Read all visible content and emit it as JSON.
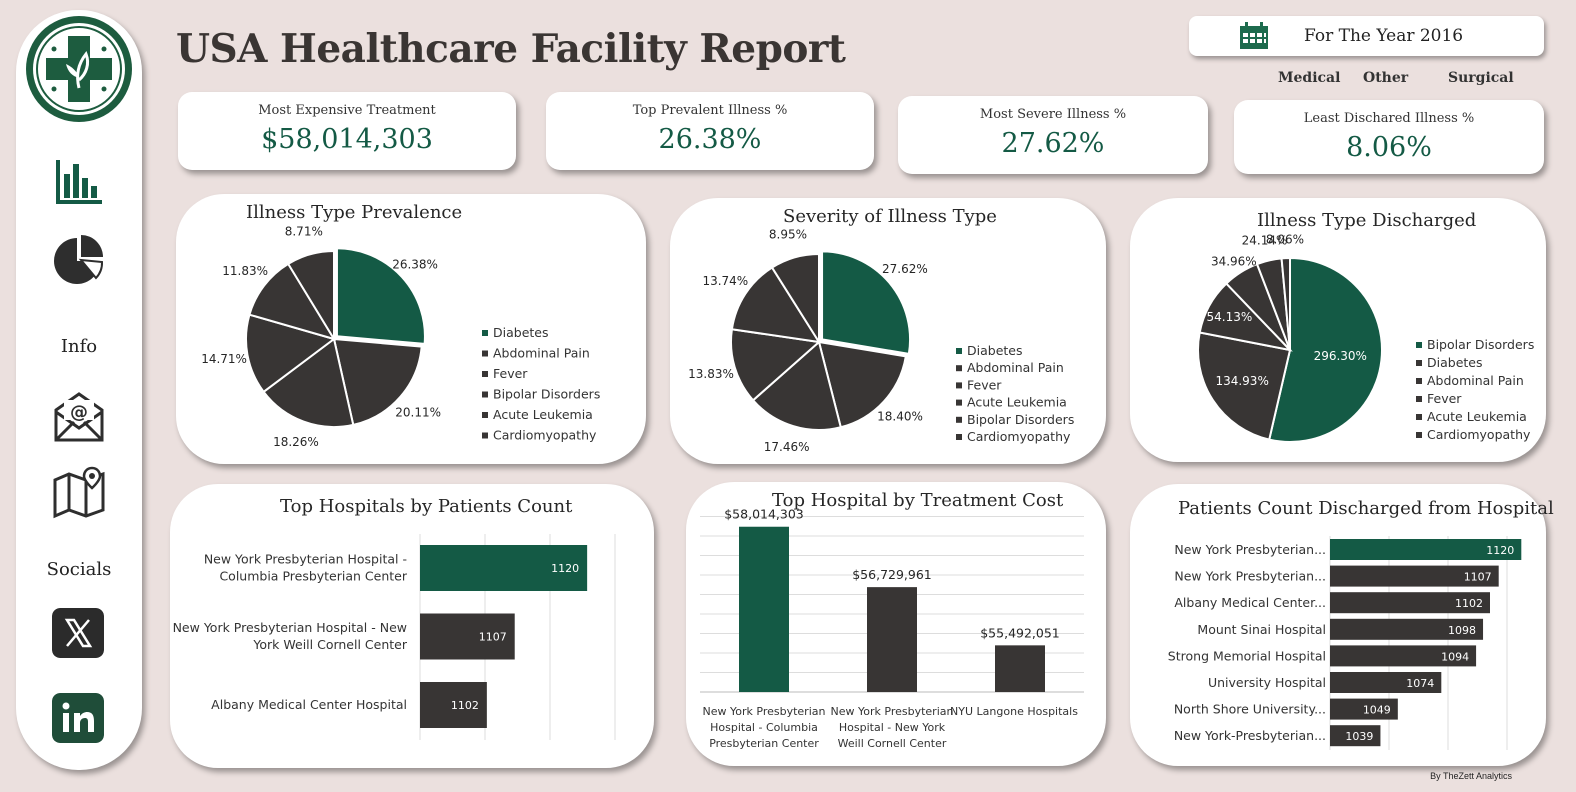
{
  "header": {
    "title": "USA Healthcare Facility Report",
    "year_label": "For The Year 2016"
  },
  "filters": [
    "Medical",
    "Other",
    "Surgical"
  ],
  "sidebar": {
    "icons": [
      "bar-chart-icon",
      "pie-chart-icon",
      "mail-icon",
      "map-icon"
    ],
    "info_label": "Info",
    "socials_label": "Socials"
  },
  "kpis": [
    {
      "label": "Most Expensive Treatment",
      "value": "$58,014,303"
    },
    {
      "label": "Top Prevalent Illness %",
      "value": "26.38%"
    },
    {
      "label": "Most Severe Illness %",
      "value": "27.62%"
    },
    {
      "label": "Least Dischared Illness %",
      "value": "8.06%"
    }
  ],
  "colors": {
    "accent": "#145a45",
    "dark": "#383534",
    "background": "#ebe0de"
  },
  "charts": {
    "prevalence": {
      "type": "pie",
      "title": "Illness Type Prevalence",
      "labels": [
        "Diabetes",
        "Abdominal Pain",
        "Fever",
        "Bipolar Disorders",
        "Acute Leukemia",
        "Cardiomyopathy"
      ],
      "values": [
        26.38,
        20.11,
        18.26,
        14.71,
        11.83,
        8.71
      ],
      "value_labels": [
        "26.38%",
        "20.11%",
        "18.26%",
        "14.71%",
        "11.83%",
        "8.71%"
      ]
    },
    "severity": {
      "type": "pie",
      "title": "Severity of Illness Type",
      "labels": [
        "Diabetes",
        "Abdominal Pain",
        "Fever",
        "Acute Leukemia",
        "Bipolar Disorders",
        "Cardiomyopathy"
      ],
      "values": [
        27.62,
        18.4,
        17.46,
        13.83,
        13.74,
        8.95
      ],
      "value_labels": [
        "27.62%",
        "18.40%",
        "17.46%",
        "13.83%",
        "13.74%",
        "8.95%"
      ]
    },
    "discharged": {
      "type": "pie",
      "title": "Illness Type Discharged",
      "labels": [
        "Bipolar Disorders",
        "Diabetes",
        "Abdominal Pain",
        "Fever",
        "Acute Leukemia",
        "Cardiomyopathy"
      ],
      "values": [
        296.3,
        134.93,
        54.13,
        34.96,
        24.14,
        8.06
      ],
      "value_labels": [
        "296.30%",
        "134.93%",
        "54.13%",
        "34.96%",
        "24.14%",
        "8.06%"
      ]
    },
    "patients_count": {
      "type": "bar",
      "title": "Top Hospitals by Patients Count",
      "categories": [
        [
          "New York Presbyterian Hospital -",
          "Columbia Presbyterian Center"
        ],
        [
          "New York Presbyterian Hospital - New",
          "York Weill Cornell Center"
        ],
        [
          "Albany Medical Center Hospital"
        ]
      ],
      "values": [
        1120,
        1107,
        1102
      ],
      "xlim": [
        1090,
        1125
      ]
    },
    "treatment_cost": {
      "type": "bar",
      "title": "Top Hospital by Treatment Cost",
      "categories": [
        [
          "New York Presbyterian",
          "Hospital - Columbia",
          "Presbyterian Center"
        ],
        [
          "New York Presbyterian",
          "Hospital - New York",
          "Weill Cornell Center"
        ],
        [
          "NYU Langone Hospitals"
        ]
      ],
      "values": [
        58014303,
        56729961,
        55492051
      ],
      "value_labels": [
        "$58,014,303",
        "$56,729,961",
        "$55,492,051"
      ],
      "ylim": [
        54500000,
        58200000
      ]
    },
    "discharged_hospital": {
      "type": "bar",
      "title": "Patients Count Discharged from Hospital",
      "categories": [
        "New York Presbyterian...",
        "New York Presbyterian...",
        "Albany Medical Center...",
        "Mount Sinai Hospital",
        "Strong Memorial Hospital",
        "University Hospital",
        "North Shore University...",
        "New York-Presbyterian..."
      ],
      "values": [
        1120,
        1107,
        1102,
        1098,
        1094,
        1074,
        1049,
        1039
      ],
      "xlim": [
        1010,
        1125
      ]
    }
  },
  "footer": {
    "credit": "By TheZett Analytics"
  }
}
